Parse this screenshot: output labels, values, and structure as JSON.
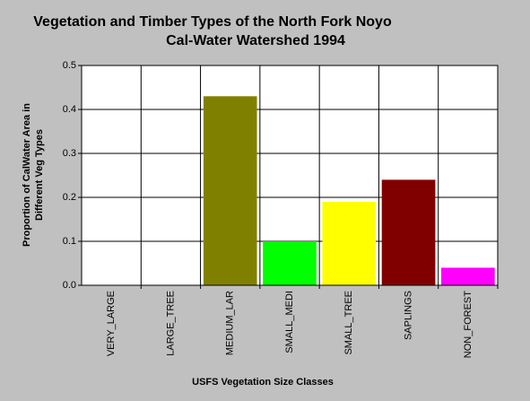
{
  "chart_data": {
    "type": "bar",
    "title": [
      "Vegetation and Timber Types of the North Fork Noyo",
      "Cal-Water Watershed 1994"
    ],
    "y_label": [
      "Proportion of CalWater Area in",
      "Different Veg Types"
    ],
    "x_label": "USFS Vegetation Size Classes",
    "categories": [
      "VERY_LARGE",
      "LARGE_TREE",
      "MEDIUM_LAR",
      "SMALL_MEDI",
      "SMALL_TREE",
      "SAPLINGS",
      "NON_FOREST"
    ],
    "values": [
      0,
      0,
      0.43,
      0.1,
      0.19,
      0.24,
      0.04
    ],
    "colors": [
      "#0000ff",
      "#ff0000",
      "#808000",
      "#00ff00",
      "#ffff00",
      "#800000",
      "#ff00ff"
    ],
    "ylim": [
      0,
      0.5
    ],
    "yticks": [
      {
        "value": 0,
        "label": "0.0"
      },
      0.1,
      0.2,
      0.3,
      0.4,
      0.5
    ],
    "grid": true
  }
}
